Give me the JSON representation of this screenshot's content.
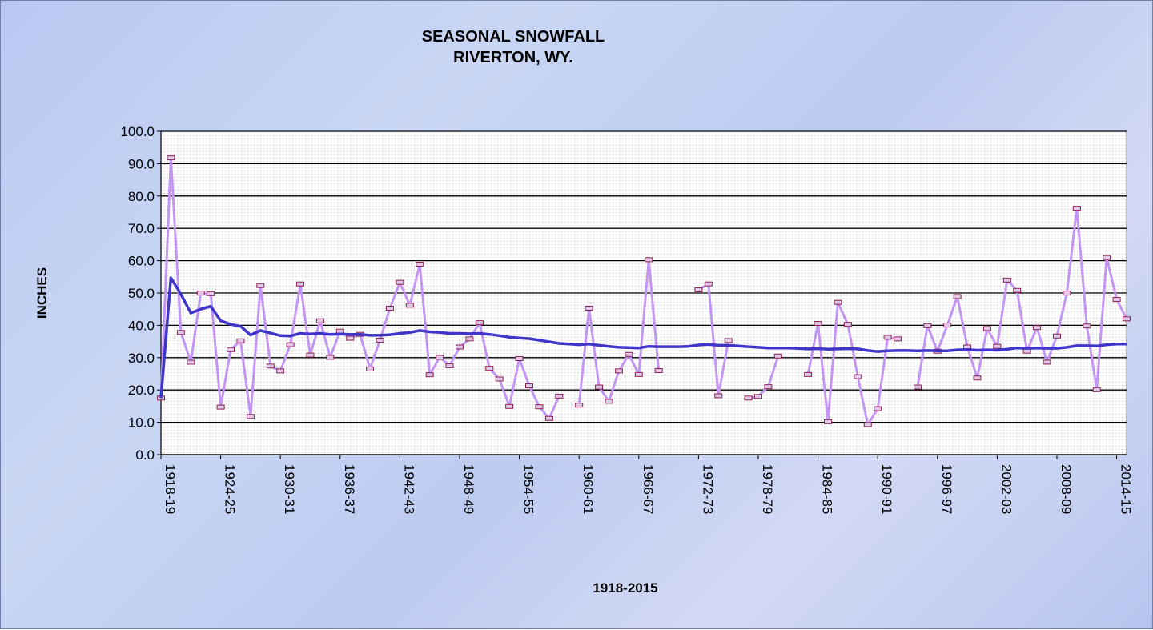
{
  "colors": {
    "background": "#c3d0f2",
    "plot_area": "#ffffff",
    "gridline": "#000000",
    "snowfall_line": "#c495f5",
    "marker_fill": "#e2c8e8",
    "marker_stroke": "#8a2050",
    "average_line": "#3f36c9"
  },
  "chart_data": {
    "type": "line",
    "title": "SEASONAL SNOWFALL",
    "subtitle": "RIVERTON, WY.",
    "xlabel": "1918-2015",
    "ylabel": "INCHES",
    "ylim": [
      0,
      100
    ],
    "y_ticks": [
      "0.0",
      "10.0",
      "20.0",
      "30.0",
      "40.0",
      "50.0",
      "60.0",
      "70.0",
      "80.0",
      "90.0",
      "100.0"
    ],
    "x_start_season": "1918-19",
    "x_end_season": "2014-15",
    "x_tick_labels": [
      "1918-19",
      "1924-25",
      "1930-31",
      "1936-37",
      "1942-43",
      "1948-49",
      "1954-55",
      "1960-61",
      "1966-67",
      "1972-73",
      "1978-79",
      "1984-85",
      "1990-91",
      "1996-97",
      "2002-03",
      "2008-09",
      "2014-15"
    ],
    "grid": true,
    "legend": "none",
    "series": [
      {
        "values": [
          17.5,
          91.8,
          37.8,
          28.6,
          50.0,
          49.8,
          14.7,
          32.5,
          35.2,
          11.8,
          52.3,
          27.4,
          25.9,
          34.0,
          52.8,
          30.8,
          41.4,
          30.1,
          38.2,
          36.0,
          37.2,
          26.5,
          35.4,
          45.3,
          53.3,
          46.2,
          58.9,
          24.7,
          30.1,
          27.5,
          33.3,
          35.8,
          40.8,
          26.7,
          23.4,
          14.9,
          29.7,
          21.3,
          14.8,
          11.2,
          18.1,
          null,
          15.3,
          45.3,
          20.9,
          16.5,
          25.9,
          31.0,
          24.8,
          60.3,
          26.0,
          null,
          null,
          null,
          51.0,
          52.8,
          18.2,
          35.3,
          null,
          17.5,
          18.0,
          21.0,
          30.5,
          null,
          null,
          24.8,
          40.6,
          10.2,
          47.1,
          40.3,
          24.1,
          9.3,
          14.2,
          36.3,
          35.8,
          null,
          20.9,
          39.9,
          32.0,
          40.1,
          48.9,
          33.3,
          23.7,
          39.0,
          33.5,
          54.0,
          50.8,
          32.0,
          39.3,
          28.6,
          36.7,
          50.0,
          76.2,
          39.8,
          20.1,
          61.0,
          48.0,
          42.0
        ]
      },
      {
        "values": [
          17.5,
          54.7,
          49.6,
          43.8,
          45.0,
          45.9,
          41.4,
          40.3,
          39.7,
          37.0,
          38.4,
          37.6,
          36.8,
          36.7,
          37.5,
          37.3,
          37.5,
          37.2,
          37.3,
          37.2,
          37.2,
          36.9,
          36.9,
          37.1,
          37.5,
          37.8,
          38.4,
          38.0,
          37.8,
          37.5,
          37.5,
          37.4,
          37.5,
          37.2,
          36.8,
          36.3,
          36.1,
          35.9,
          35.4,
          34.9,
          34.4,
          34.2,
          34.0,
          34.2,
          33.8,
          33.5,
          33.2,
          33.1,
          33.0,
          33.5,
          33.4,
          33.4,
          33.4,
          33.5,
          33.9,
          34.1,
          33.8,
          33.8,
          33.6,
          33.4,
          33.2,
          33.0,
          33.0,
          33.0,
          32.9,
          32.7,
          32.8,
          32.6,
          32.7,
          32.8,
          32.7,
          32.2,
          31.9,
          32.1,
          32.2,
          32.2,
          32.1,
          32.2,
          32.1,
          32.1,
          32.4,
          32.5,
          32.3,
          32.4,
          32.3,
          32.6,
          33.0,
          32.9,
          33.0,
          32.9,
          32.9,
          33.2,
          33.7,
          33.7,
          33.6,
          34.0,
          34.2,
          34.2
        ]
      }
    ]
  }
}
